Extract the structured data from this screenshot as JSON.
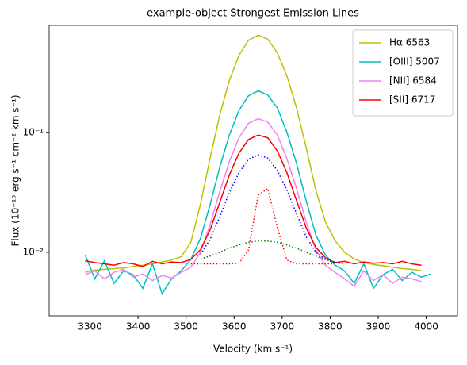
{
  "chart_data": {
    "type": "line",
    "title": "example-object Strongest Emission Lines",
    "x_label": "Velocity (km s⁻¹)",
    "y_label": "Flux (10⁻¹⁵ erg s⁻¹ cm⁻² km s⁻¹)",
    "log_y": true,
    "legend": "upper right",
    "xlim": [
      3215,
      4065
    ],
    "ylim": [
      0.00295,
      0.78
    ],
    "xticks": [
      3300,
      3400,
      3500,
      3600,
      3700,
      3800,
      3900,
      4000
    ],
    "yticks": [
      {
        "value": 0.01,
        "label": "10⁻²"
      },
      {
        "value": 0.1,
        "label": "10⁻¹"
      }
    ],
    "x": [
      3290,
      3310,
      3330,
      3350,
      3370,
      3390,
      3410,
      3430,
      3450,
      3470,
      3490,
      3510,
      3530,
      3550,
      3570,
      3590,
      3610,
      3630,
      3650,
      3670,
      3690,
      3710,
      3730,
      3750,
      3770,
      3790,
      3810,
      3830,
      3850,
      3870,
      3890,
      3910,
      3930,
      3950,
      3970,
      3990,
      4010
    ],
    "series": [
      {
        "name": "Hα 6563",
        "color": "#bfbf00",
        "values": [
          0.0068,
          0.0071,
          0.0072,
          0.0073,
          0.0074,
          0.0076,
          0.0078,
          0.008,
          0.0083,
          0.0086,
          0.0092,
          0.0121,
          0.0253,
          0.061,
          0.139,
          0.27,
          0.438,
          0.587,
          0.647,
          0.6,
          0.46,
          0.295,
          0.16,
          0.075,
          0.033,
          0.018,
          0.0125,
          0.01,
          0.0088,
          0.0082,
          0.0079,
          0.0077,
          0.0075,
          0.0073,
          0.0072,
          0.007,
          null
        ]
      },
      {
        "name": "[OIII] 5007",
        "color": "#00bfbf",
        "values": [
          0.0095,
          0.006,
          0.0085,
          0.0055,
          0.007,
          0.0065,
          0.005,
          0.008,
          0.0045,
          0.006,
          0.007,
          0.0087,
          0.0131,
          0.025,
          0.051,
          0.095,
          0.152,
          0.202,
          0.222,
          0.205,
          0.16,
          0.1,
          0.055,
          0.027,
          0.014,
          0.0095,
          0.0078,
          0.007,
          0.0055,
          0.008,
          0.005,
          0.0065,
          0.0072,
          0.0058,
          0.0068,
          0.0062,
          0.0066
        ]
      },
      {
        "name": "[NII] 6584",
        "color": "#ee82ee",
        "values": [
          0.0065,
          0.007,
          0.006,
          0.0068,
          0.0072,
          0.0062,
          0.0066,
          0.0058,
          0.0064,
          0.0061,
          0.0068,
          0.0075,
          0.01,
          0.017,
          0.032,
          0.057,
          0.09,
          0.119,
          0.13,
          0.122,
          0.095,
          0.06,
          0.034,
          0.018,
          0.0105,
          0.0078,
          0.0068,
          0.006,
          0.0052,
          0.007,
          0.0058,
          0.0065,
          0.0055,
          0.0062,
          0.006,
          0.0057,
          null
        ]
      },
      {
        "name": "[SII] 6717",
        "color": "#ff0000",
        "values": [
          0.0085,
          0.0082,
          0.008,
          0.0078,
          0.0082,
          0.008,
          0.0076,
          0.0084,
          0.008,
          0.0083,
          0.0082,
          0.0087,
          0.0105,
          0.0154,
          0.026,
          0.044,
          0.067,
          0.087,
          0.095,
          0.09,
          0.07,
          0.046,
          0.027,
          0.016,
          0.011,
          0.009,
          0.0082,
          0.0084,
          0.008,
          0.0083,
          0.0081,
          0.0082,
          0.008,
          0.0084,
          0.008,
          0.0078,
          null
        ]
      },
      {
        "color": "#0000ff",
        "style": "dotted",
        "values": [
          null,
          null,
          null,
          null,
          null,
          null,
          null,
          null,
          null,
          null,
          null,
          null,
          0.0096,
          0.0128,
          0.0197,
          0.0314,
          0.046,
          0.0596,
          0.065,
          0.061,
          0.048,
          0.033,
          0.021,
          0.0135,
          0.01,
          0.0087,
          0.0082,
          0.008,
          null,
          null,
          null,
          null,
          null,
          null,
          null,
          null,
          null
        ]
      },
      {
        "color": "#008000",
        "style": "dotted",
        "values": [
          null,
          null,
          null,
          null,
          null,
          null,
          null,
          null,
          null,
          null,
          null,
          null,
          0.0088,
          0.0093,
          0.01,
          0.0108,
          0.0115,
          0.0121,
          0.0124,
          0.0124,
          0.0121,
          0.0115,
          0.0108,
          0.01,
          0.0093,
          0.0087,
          0.0083,
          null,
          null,
          null,
          null,
          null,
          null,
          null,
          null,
          null,
          null
        ]
      },
      {
        "color": "#ff0000",
        "style": "dotted",
        "values": [
          null,
          null,
          null,
          null,
          null,
          null,
          null,
          null,
          null,
          null,
          null,
          0.008,
          0.008,
          0.008,
          0.008,
          0.008,
          0.0081,
          0.0104,
          0.03,
          0.034,
          0.016,
          0.0086,
          0.008,
          0.008,
          0.008,
          0.008,
          0.008,
          null,
          null,
          null,
          null,
          null,
          null,
          null,
          null,
          null,
          null
        ]
      }
    ]
  }
}
